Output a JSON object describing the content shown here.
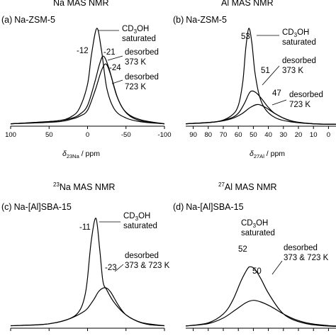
{
  "page": {
    "top_section_titles": [
      {
        "sup": "23",
        "text": "Na MAS NMR"
      },
      {
        "sup": "27",
        "text": "Al MAS NMR"
      }
    ],
    "bottom_section_titles": [
      {
        "sup": "23",
        "text": "Na MAS NMR"
      },
      {
        "sup": "27",
        "text": "Al MAS NMR"
      }
    ]
  },
  "chart_data": [
    {
      "type": "line",
      "panel_label": "(a)",
      "sample": "Na-ZSM-5",
      "x_ticks": [
        100,
        50,
        0,
        -50,
        -100
      ],
      "xlim": [
        100,
        -100
      ],
      "xlabel": {
        "main": "δ",
        "sub": "23Na",
        "unit": " / ppm"
      },
      "series": [
        {
          "name": "CD3OH saturated",
          "peak": -12,
          "x": [
            100,
            40,
            20,
            10,
            0,
            -5,
            -12,
            -18,
            -25,
            -35,
            -50,
            -70,
            -100
          ],
          "values": [
            0.01,
            0.04,
            0.09,
            0.18,
            0.42,
            0.72,
            1.0,
            0.78,
            0.38,
            0.16,
            0.07,
            0.03,
            0.01
          ]
        },
        {
          "name": "desorbed 373 K",
          "peak": -21,
          "x": [
            100,
            40,
            20,
            10,
            0,
            -10,
            -16,
            -21,
            -28,
            -38,
            -50,
            -70,
            -100
          ],
          "values": [
            0.01,
            0.04,
            0.07,
            0.11,
            0.2,
            0.46,
            0.64,
            0.71,
            0.58,
            0.3,
            0.13,
            0.05,
            0.01
          ]
        },
        {
          "name": "desorbed 723 K",
          "peak": -24,
          "x": [
            100,
            40,
            20,
            10,
            0,
            -10,
            -18,
            -24,
            -30,
            -40,
            -52,
            -70,
            -100
          ],
          "values": [
            0.01,
            0.03,
            0.06,
            0.09,
            0.15,
            0.36,
            0.56,
            0.63,
            0.52,
            0.26,
            0.11,
            0.04,
            0.01
          ]
        }
      ],
      "annotations": [
        {
          "label": "CD3OH saturated",
          "lines": [
            "CD",
            "3",
            "OH",
            "saturated"
          ]
        },
        {
          "label": "-12"
        },
        {
          "label": "-21"
        },
        {
          "label": "-24"
        },
        {
          "lines": [
            "desorbed",
            "373 K"
          ]
        },
        {
          "lines": [
            "desorbed",
            "723 K"
          ]
        }
      ]
    },
    {
      "type": "line",
      "panel_label": "(b)",
      "sample": "Na-ZSM-5",
      "x_ticks": [
        90,
        80,
        70,
        60,
        50,
        40,
        30,
        20,
        10,
        0
      ],
      "xlim": [
        95,
        -5
      ],
      "xlabel": {
        "main": "δ",
        "sub": "27Al",
        "unit": " / ppm"
      },
      "series": [
        {
          "name": "CD3OH saturated",
          "peak": 53,
          "x": [
            95,
            75,
            65,
            60,
            57,
            55,
            53,
            51,
            49,
            46,
            42,
            35,
            25,
            10,
            -5
          ],
          "values": [
            0.01,
            0.03,
            0.09,
            0.2,
            0.45,
            0.8,
            1.0,
            0.85,
            0.55,
            0.3,
            0.16,
            0.07,
            0.03,
            0.01,
            0.005
          ]
        },
        {
          "name": "desorbed 373 K",
          "peak": 51,
          "x": [
            95,
            75,
            65,
            60,
            56,
            53,
            51,
            48,
            44,
            40,
            35,
            25,
            10,
            -5
          ],
          "values": [
            0.01,
            0.03,
            0.07,
            0.12,
            0.22,
            0.32,
            0.35,
            0.33,
            0.26,
            0.18,
            0.11,
            0.04,
            0.01,
            0.005
          ]
        },
        {
          "name": "desorbed 723 K",
          "peak": 47,
          "x": [
            95,
            75,
            65,
            58,
            52,
            47,
            42,
            36,
            30,
            22,
            10,
            -5
          ],
          "values": [
            0.01,
            0.03,
            0.06,
            0.11,
            0.18,
            0.21,
            0.18,
            0.12,
            0.07,
            0.03,
            0.01,
            0.005
          ]
        }
      ],
      "annotations": [
        {
          "label": "53"
        },
        {
          "label": "51"
        },
        {
          "label": "47"
        },
        {
          "lines": [
            "CD",
            "3",
            "OH",
            "saturated"
          ]
        },
        {
          "lines": [
            "desorbed",
            "373 K"
          ]
        },
        {
          "lines": [
            "desorbed",
            "723 K"
          ]
        }
      ]
    },
    {
      "type": "line",
      "panel_label": "(c)",
      "sample": "Na-[Al]SBA-15",
      "xlim": [
        100,
        -100
      ],
      "series": [
        {
          "name": "CD3OH saturated",
          "peak": -11,
          "x": [
            100,
            60,
            40,
            25,
            15,
            8,
            3,
            0,
            -5,
            -11,
            -16,
            -20,
            -25,
            -35,
            -50,
            -70,
            -100
          ],
          "values": [
            0.01,
            0.02,
            0.04,
            0.07,
            0.11,
            0.18,
            0.3,
            0.45,
            0.8,
            1.0,
            0.7,
            0.42,
            0.34,
            0.22,
            0.11,
            0.04,
            0.01
          ]
        },
        {
          "name": "desorbed 373 & 723 K",
          "peak": -23,
          "x": [
            100,
            60,
            40,
            25,
            15,
            5,
            0,
            -8,
            -15,
            -23,
            -30,
            -40,
            -50,
            -65,
            -80,
            -100
          ],
          "values": [
            0.01,
            0.02,
            0.04,
            0.07,
            0.1,
            0.14,
            0.17,
            0.25,
            0.33,
            0.36,
            0.32,
            0.2,
            0.11,
            0.05,
            0.02,
            0.01
          ]
        }
      ],
      "annotations": [
        {
          "label": "-11"
        },
        {
          "label": "-23"
        },
        {
          "lines": [
            "CD",
            "3",
            "OH",
            "saturated"
          ]
        },
        {
          "lines": [
            "desorbed",
            "373 & 723 K"
          ]
        }
      ]
    },
    {
      "type": "line",
      "panel_label": "(d)",
      "sample": "Na-[Al]SBA-15",
      "xlim": [
        95,
        -5
      ],
      "series": [
        {
          "name": "CD3OH saturated",
          "peak": 52,
          "x": [
            95,
            80,
            70,
            64,
            58,
            54,
            52,
            49,
            45,
            40,
            32,
            25,
            15,
            5,
            -5
          ],
          "values": [
            0.01,
            0.05,
            0.16,
            0.32,
            0.58,
            0.72,
            0.75,
            0.72,
            0.6,
            0.42,
            0.2,
            0.1,
            0.04,
            0.015,
            0.005
          ]
        },
        {
          "name": "desorbed 373 & 723 K",
          "peak": 50,
          "x": [
            95,
            80,
            70,
            62,
            55,
            50,
            45,
            38,
            30,
            22,
            12,
            0,
            -5
          ],
          "values": [
            0.01,
            0.04,
            0.11,
            0.21,
            0.3,
            0.33,
            0.31,
            0.25,
            0.16,
            0.09,
            0.04,
            0.015,
            0.01
          ]
        }
      ],
      "annotations": [
        {
          "label": "52"
        },
        {
          "label": "50"
        },
        {
          "lines": [
            "CD",
            "3",
            "OH",
            "saturated"
          ]
        },
        {
          "lines": [
            "desorbed",
            "373 & 723 K"
          ]
        }
      ]
    }
  ]
}
